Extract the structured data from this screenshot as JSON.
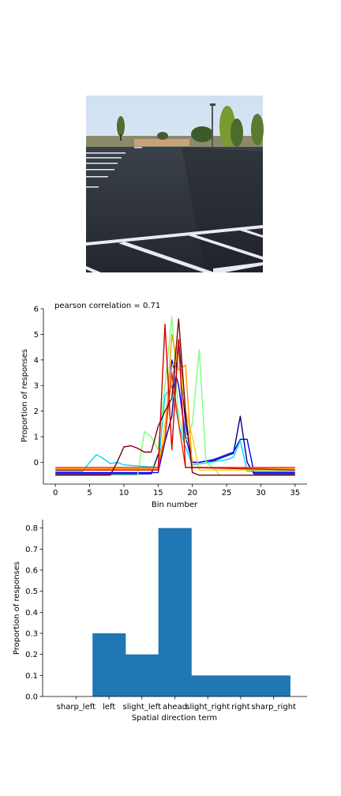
{
  "chart_data": [
    {
      "type": "line",
      "title": "pearson correlation = 0.71",
      "xlabel": "Bin number",
      "ylabel": "Proportion of responses",
      "xlim": [
        -1.75,
        36.75
      ],
      "ylim": [
        -0.85,
        6.0
      ],
      "xticks": [
        0,
        5,
        10,
        15,
        20,
        25,
        30,
        35
      ],
      "yticks": [
        0,
        1,
        2,
        3,
        4,
        5,
        6
      ],
      "grid": false,
      "series": [
        {
          "color": "#000080",
          "x": [
            0,
            14,
            15,
            16,
            17,
            18,
            19,
            20,
            21,
            22,
            23,
            24,
            25,
            26,
            27,
            28,
            29,
            35
          ],
          "y": [
            -0.45,
            -0.45,
            0.3,
            0.8,
            1.8,
            4.8,
            1.5,
            0.0,
            0.0,
            0.05,
            0.05,
            0.15,
            0.25,
            0.35,
            1.8,
            0.0,
            -0.45,
            -0.45
          ]
        },
        {
          "color": "#0000ff",
          "x": [
            0,
            15,
            16,
            17,
            18,
            19,
            20,
            21,
            22,
            23,
            24,
            25,
            26,
            27,
            28,
            29,
            35
          ],
          "y": [
            -0.4,
            -0.4,
            0.8,
            4.0,
            3.0,
            1.0,
            0.0,
            0.0,
            0.05,
            0.1,
            0.2,
            0.3,
            0.4,
            0.9,
            0.9,
            -0.4,
            -0.4
          ]
        },
        {
          "color": "#00d4ff",
          "x": [
            0,
            4,
            5,
            6,
            7,
            8,
            9,
            10,
            15,
            16,
            17,
            18,
            19,
            20,
            25,
            26,
            27,
            28,
            35
          ],
          "y": [
            -0.35,
            -0.35,
            0.0,
            0.3,
            0.15,
            -0.05,
            0.0,
            -0.1,
            -0.2,
            2.6,
            3.0,
            1.5,
            0.6,
            -0.1,
            0.1,
            0.2,
            0.85,
            -0.35,
            -0.35
          ]
        },
        {
          "color": "#7dff7a",
          "x": [
            0,
            12,
            13,
            14,
            15,
            16,
            17,
            18,
            19,
            20,
            21,
            22,
            23,
            24,
            35
          ],
          "y": [
            -0.5,
            -0.5,
            1.2,
            1.0,
            0.5,
            3.0,
            5.7,
            1.8,
            0.8,
            1.5,
            4.4,
            0.0,
            -0.2,
            -0.5,
            -0.5
          ]
        },
        {
          "color": "#ffd200",
          "x": [
            0,
            15,
            16,
            17,
            18,
            19,
            20,
            21,
            35
          ],
          "y": [
            -0.3,
            -0.3,
            1.5,
            3.7,
            4.3,
            2.0,
            1.0,
            -0.3,
            -0.3
          ]
        },
        {
          "color": "#ff9a00",
          "x": [
            0,
            15,
            16,
            17,
            18,
            19,
            20,
            35
          ],
          "y": [
            -0.25,
            -0.25,
            1.0,
            5.0,
            3.6,
            3.8,
            -0.2,
            -0.25
          ]
        },
        {
          "color": "#ff2a00",
          "x": [
            0,
            15,
            16,
            17,
            18,
            19,
            35
          ],
          "y": [
            -0.2,
            -0.2,
            0.9,
            3.5,
            1.5,
            -0.2,
            -0.2
          ]
        },
        {
          "color": "#d40000",
          "x": [
            0,
            15,
            16,
            17,
            18,
            19,
            35
          ],
          "y": [
            -0.3,
            -0.3,
            5.4,
            0.5,
            4.8,
            -0.2,
            -0.3
          ]
        },
        {
          "color": "#800000",
          "x": [
            0,
            8,
            9,
            10,
            11,
            12,
            13,
            14,
            15,
            16,
            17,
            18,
            19,
            20,
            21,
            35
          ],
          "y": [
            -0.5,
            -0.5,
            0.0,
            0.6,
            0.65,
            0.55,
            0.4,
            0.4,
            1.4,
            2.0,
            2.5,
            5.6,
            2.0,
            -0.4,
            -0.5,
            -0.5
          ]
        }
      ]
    },
    {
      "type": "bar",
      "xlabel": "Spatial direction term",
      "ylabel": "Proportion of responses",
      "categories": [
        "sharp_left",
        "left",
        "slight_left",
        "ahead",
        "slight_right",
        "right",
        "sharp_right"
      ],
      "values": [
        0.0,
        0.3,
        0.2,
        0.8,
        0.1,
        0.1,
        0.1
      ],
      "ylim": [
        0.0,
        0.84
      ],
      "yticks": [
        0.0,
        0.1,
        0.2,
        0.3,
        0.4,
        0.5,
        0.6,
        0.7,
        0.8
      ],
      "color": "#1f77b4",
      "grid": false
    }
  ]
}
